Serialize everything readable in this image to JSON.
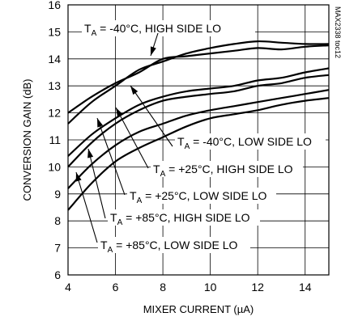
{
  "chart_data": {
    "type": "line",
    "xlabel": "MIXER CURRENT (µA)",
    "ylabel": "CONVERSION GAIN (dB)",
    "xlim": [
      4,
      15
    ],
    "ylim": [
      6,
      16
    ],
    "xticks": [
      4,
      6,
      8,
      10,
      12,
      14
    ],
    "yticks": [
      6,
      7,
      8,
      9,
      10,
      11,
      12,
      13,
      14,
      15,
      16
    ],
    "grid": true,
    "watermark": "MAX2338 toc12",
    "series": [
      {
        "name": "TA = -40°C, HIGH SIDE LO",
        "x": [
          4,
          5,
          6,
          7,
          8,
          9,
          10,
          11,
          12,
          13,
          14,
          15
        ],
        "y": [
          12.0,
          12.6,
          13.1,
          13.5,
          14.0,
          14.1,
          14.2,
          14.3,
          14.4,
          14.35,
          14.45,
          14.5
        ]
      },
      {
        "name": "TA = -40°C, LOW SIDE LO",
        "x": [
          4,
          5,
          6,
          7,
          8,
          9,
          10,
          11,
          12,
          13,
          14,
          15
        ],
        "y": [
          11.6,
          12.4,
          13.0,
          13.6,
          13.9,
          14.2,
          14.4,
          14.55,
          14.65,
          14.6,
          14.55,
          14.55
        ]
      },
      {
        "name": "TA = +25°C, HIGH SIDE LO",
        "x": [
          4,
          5,
          6,
          7,
          8,
          9,
          10,
          11,
          12,
          13,
          14,
          15
        ],
        "y": [
          10.4,
          11.2,
          11.8,
          12.3,
          12.6,
          12.8,
          12.9,
          13.0,
          13.2,
          13.3,
          13.5,
          13.65
        ]
      },
      {
        "name": "TA = +25°C, LOW SIDE LO",
        "x": [
          4,
          5,
          6,
          7,
          8,
          9,
          10,
          11,
          12,
          13,
          14,
          15
        ],
        "y": [
          10.0,
          10.9,
          11.6,
          12.1,
          12.45,
          12.6,
          12.7,
          12.8,
          13.0,
          13.1,
          13.3,
          13.4
        ]
      },
      {
        "name": "TA = +85°C, HIGH SIDE LO",
        "x": [
          4,
          5,
          6,
          7,
          8,
          9,
          10,
          11,
          12,
          13,
          14,
          15
        ],
        "y": [
          9.2,
          10.1,
          10.8,
          11.3,
          11.6,
          11.9,
          12.1,
          12.25,
          12.4,
          12.55,
          12.7,
          12.85
        ]
      },
      {
        "name": "TA = +85°C, LOW SIDE LO",
        "x": [
          4,
          5,
          6,
          7,
          8,
          9,
          10,
          11,
          12,
          13,
          14,
          15
        ],
        "y": [
          8.4,
          9.4,
          10.2,
          10.7,
          11.1,
          11.5,
          11.8,
          11.95,
          12.1,
          12.3,
          12.45,
          12.55
        ]
      }
    ],
    "annotations": [
      {
        "pre": "T",
        "sub": "A",
        "post": " = -40°C, HIGH SIDE LO"
      },
      {
        "pre": "T",
        "sub": "A",
        "post": " = -40°C, LOW SIDE LO"
      },
      {
        "pre": "T",
        "sub": "A",
        "post": " = +25°C, HIGH SIDE LO"
      },
      {
        "pre": "T",
        "sub": "A",
        "post": " = +25°C, LOW SIDE LO"
      },
      {
        "pre": "T",
        "sub": "A",
        "post": " = +85°C, HIGH SIDE LO"
      },
      {
        "pre": "T",
        "sub": "A",
        "post": " = +85°C, LOW SIDE LO"
      }
    ]
  }
}
